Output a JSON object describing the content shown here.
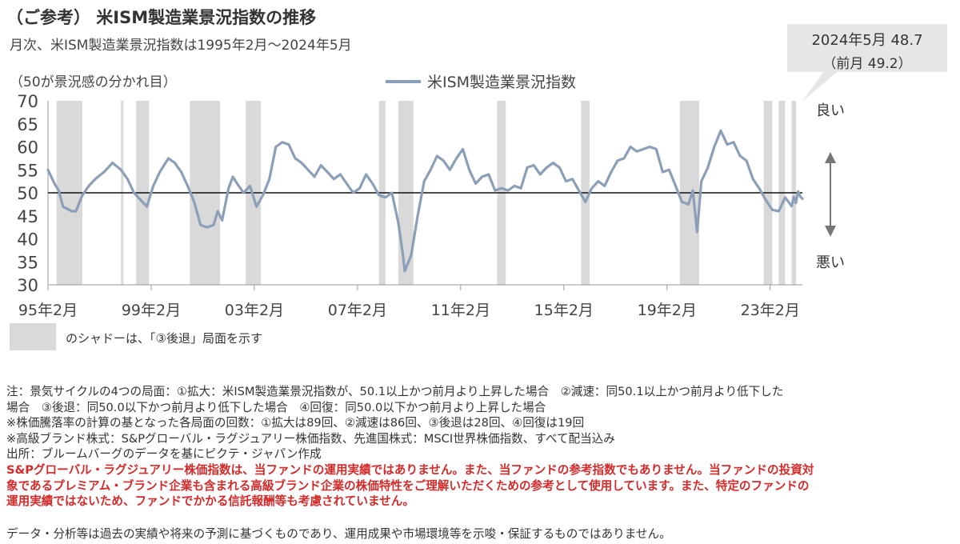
{
  "title": "（ご参考） 米ISM製造業景況指数の推移",
  "subtitle": "月次、米ISM製造業景況指数は1995年2月～2024年5月",
  "callout": {
    "main": "2024年5月  48.7",
    "prev": "（前月  49.2）"
  },
  "chart_data": {
    "type": "line",
    "ylabel": "（50が景況感の分かれ目）",
    "ylim": [
      30,
      70
    ],
    "yticks": [
      30,
      35,
      40,
      45,
      50,
      55,
      60,
      65,
      70
    ],
    "x_range": [
      "1995-02",
      "2024-05"
    ],
    "x_ticks": [
      {
        "date": "1995-02",
        "label": "95年2月"
      },
      {
        "date": "1999-02",
        "label": "99年2月"
      },
      {
        "date": "2003-02",
        "label": "03年2月"
      },
      {
        "date": "2007-02",
        "label": "07年2月"
      },
      {
        "date": "2011-02",
        "label": "11年2月"
      },
      {
        "date": "2015-02",
        "label": "15年2月"
      },
      {
        "date": "2019-02",
        "label": "19年2月"
      },
      {
        "date": "2023-02",
        "label": "23年2月"
      }
    ],
    "reference_line": 50,
    "series": [
      {
        "name": "米ISM製造業景況指数",
        "color": "#8c9fb9",
        "points": [
          [
            "1995-02",
            55.0
          ],
          [
            "1995-05",
            52.0
          ],
          [
            "1995-07",
            50.5
          ],
          [
            "1995-09",
            47.0
          ],
          [
            "1995-11",
            46.5
          ],
          [
            "1996-01",
            46.0
          ],
          [
            "1996-03",
            46.0
          ],
          [
            "1996-06",
            49.5
          ],
          [
            "1996-09",
            51.5
          ],
          [
            "1996-12",
            53.0
          ],
          [
            "1997-04",
            54.5
          ],
          [
            "1997-08",
            56.5
          ],
          [
            "1997-12",
            55.0
          ],
          [
            "1998-03",
            53.0
          ],
          [
            "1998-06",
            50.0
          ],
          [
            "1998-09",
            48.5
          ],
          [
            "1998-12",
            47.0
          ],
          [
            "1999-03",
            51.5
          ],
          [
            "1999-06",
            54.5
          ],
          [
            "1999-10",
            57.5
          ],
          [
            "2000-01",
            56.5
          ],
          [
            "2000-04",
            54.5
          ],
          [
            "2000-07",
            51.5
          ],
          [
            "2000-10",
            48.0
          ],
          [
            "2001-01",
            43.0
          ],
          [
            "2001-04",
            42.5
          ],
          [
            "2001-07",
            43.0
          ],
          [
            "2001-09",
            46.0
          ],
          [
            "2001-11",
            44.0
          ],
          [
            "2002-02",
            51.0
          ],
          [
            "2002-04",
            53.5
          ],
          [
            "2002-06",
            52.0
          ],
          [
            "2002-09",
            50.0
          ],
          [
            "2002-12",
            51.5
          ],
          [
            "2003-03",
            47.0
          ],
          [
            "2003-06",
            49.5
          ],
          [
            "2003-09",
            53.0
          ],
          [
            "2003-12",
            60.0
          ],
          [
            "2004-03",
            61.0
          ],
          [
            "2004-06",
            60.5
          ],
          [
            "2004-09",
            57.5
          ],
          [
            "2004-12",
            56.5
          ],
          [
            "2005-03",
            55.0
          ],
          [
            "2005-06",
            53.5
          ],
          [
            "2005-09",
            56.0
          ],
          [
            "2005-12",
            54.5
          ],
          [
            "2006-03",
            53.0
          ],
          [
            "2006-06",
            54.0
          ],
          [
            "2006-09",
            52.0
          ],
          [
            "2006-12",
            50.0
          ],
          [
            "2007-03",
            51.0
          ],
          [
            "2007-06",
            54.0
          ],
          [
            "2007-09",
            52.0
          ],
          [
            "2007-12",
            49.5
          ],
          [
            "2008-03",
            49.0
          ],
          [
            "2008-06",
            50.0
          ],
          [
            "2008-09",
            43.5
          ],
          [
            "2008-11",
            37.0
          ],
          [
            "2008-12",
            33.0
          ],
          [
            "2009-03",
            36.5
          ],
          [
            "2009-06",
            45.0
          ],
          [
            "2009-09",
            52.5
          ],
          [
            "2009-12",
            55.0
          ],
          [
            "2010-03",
            58.0
          ],
          [
            "2010-06",
            57.0
          ],
          [
            "2010-09",
            55.0
          ],
          [
            "2010-12",
            57.5
          ],
          [
            "2011-03",
            59.5
          ],
          [
            "2011-06",
            55.0
          ],
          [
            "2011-09",
            52.0
          ],
          [
            "2011-12",
            53.5
          ],
          [
            "2012-03",
            54.0
          ],
          [
            "2012-06",
            50.5
          ],
          [
            "2012-09",
            51.0
          ],
          [
            "2012-12",
            50.5
          ],
          [
            "2013-03",
            51.5
          ],
          [
            "2013-06",
            51.0
          ],
          [
            "2013-09",
            55.5
          ],
          [
            "2013-12",
            56.0
          ],
          [
            "2014-03",
            54.0
          ],
          [
            "2014-06",
            55.5
          ],
          [
            "2014-09",
            56.5
          ],
          [
            "2014-12",
            55.5
          ],
          [
            "2015-03",
            52.5
          ],
          [
            "2015-06",
            53.0
          ],
          [
            "2015-09",
            50.5
          ],
          [
            "2015-12",
            48.0
          ],
          [
            "2016-03",
            51.0
          ],
          [
            "2016-06",
            52.5
          ],
          [
            "2016-09",
            51.5
          ],
          [
            "2016-12",
            54.5
          ],
          [
            "2017-03",
            57.0
          ],
          [
            "2017-06",
            57.5
          ],
          [
            "2017-09",
            60.0
          ],
          [
            "2017-12",
            59.0
          ],
          [
            "2018-03",
            59.5
          ],
          [
            "2018-06",
            60.0
          ],
          [
            "2018-09",
            59.5
          ],
          [
            "2018-12",
            54.5
          ],
          [
            "2019-03",
            55.0
          ],
          [
            "2019-06",
            51.5
          ],
          [
            "2019-09",
            48.0
          ],
          [
            "2019-12",
            47.5
          ],
          [
            "2020-02",
            50.5
          ],
          [
            "2020-04",
            41.5
          ],
          [
            "2020-06",
            52.5
          ],
          [
            "2020-09",
            55.5
          ],
          [
            "2020-12",
            60.0
          ],
          [
            "2021-03",
            63.5
          ],
          [
            "2021-06",
            60.5
          ],
          [
            "2021-09",
            61.0
          ],
          [
            "2021-12",
            58.0
          ],
          [
            "2022-03",
            57.0
          ],
          [
            "2022-06",
            53.0
          ],
          [
            "2022-09",
            50.9
          ],
          [
            "2022-12",
            48.4
          ],
          [
            "2023-03",
            46.3
          ],
          [
            "2023-06",
            46.0
          ],
          [
            "2023-09",
            49.0
          ],
          [
            "2023-12",
            47.1
          ],
          [
            "2024-01",
            49.1
          ],
          [
            "2024-02",
            47.8
          ],
          [
            "2024-03",
            50.3
          ],
          [
            "2024-04",
            49.2
          ],
          [
            "2024-05",
            48.7
          ]
        ]
      }
    ],
    "shaded_periods": [
      [
        "1995-06",
        "1996-06"
      ],
      [
        "1997-12",
        "1998-01"
      ],
      [
        "1998-07",
        "1999-01"
      ],
      [
        "2000-08",
        "2001-10"
      ],
      [
        "2002-10",
        "2003-05"
      ],
      [
        "2007-12",
        "2008-03"
      ],
      [
        "2008-09",
        "2009-04"
      ],
      [
        "2012-07",
        "2012-11"
      ],
      [
        "2015-10",
        "2016-02"
      ],
      [
        "2019-08",
        "2020-05"
      ],
      [
        "2022-11",
        "2023-03"
      ],
      [
        "2023-06",
        "2023-09"
      ],
      [
        "2023-12",
        "2024-02"
      ]
    ],
    "side_labels": {
      "top": "良い",
      "bottom": "悪い"
    }
  },
  "shade_legend": "のシャドーは、「③後退」局面を示す",
  "notes": {
    "lines": [
      "注：景気サイクルの4つの局面：①拡大：米ISM製造業景況指数が、50.1以上かつ前月より上昇した場合　②減速：同50.1以上かつ前月より低下した",
      "場合　③後退：同50.0以下かつ前月より低下した場合　④回復：同50.0以下かつ前月より上昇した場合",
      "※株価騰落率の計算の基となった各局面の回数：①拡大は89回、②減速は86回、③後退は28回、④回復は19回",
      "※高級ブランド株式：S&Pグローバル・ラグジュアリー株価指数、先進国株式：MSCI世界株価指数、すべて配当込み",
      "出所：ブルームバーグのデータを基にピクテ・ジャパン作成"
    ],
    "red_lines": [
      "S&Pグローバル・ラグジュアリー株価指数は、当ファンドの運用実績ではありません。また、当ファンドの参考指数でもありません。当ファンドの投資対",
      "象であるプレミアム・ブランド企業も含まれる高級ブランド企業の株価特性をご理解いただくための参考として使用しています。また、特定のファンドの",
      "運用実績ではないため、ファンドでかかる信託報酬等も考慮されていません。"
    ]
  },
  "disclaimer": "データ・分析等は過去の実績や将来の予測に基づくものであり、運用成果や市場環境等を示唆・保証するものではありません。"
}
